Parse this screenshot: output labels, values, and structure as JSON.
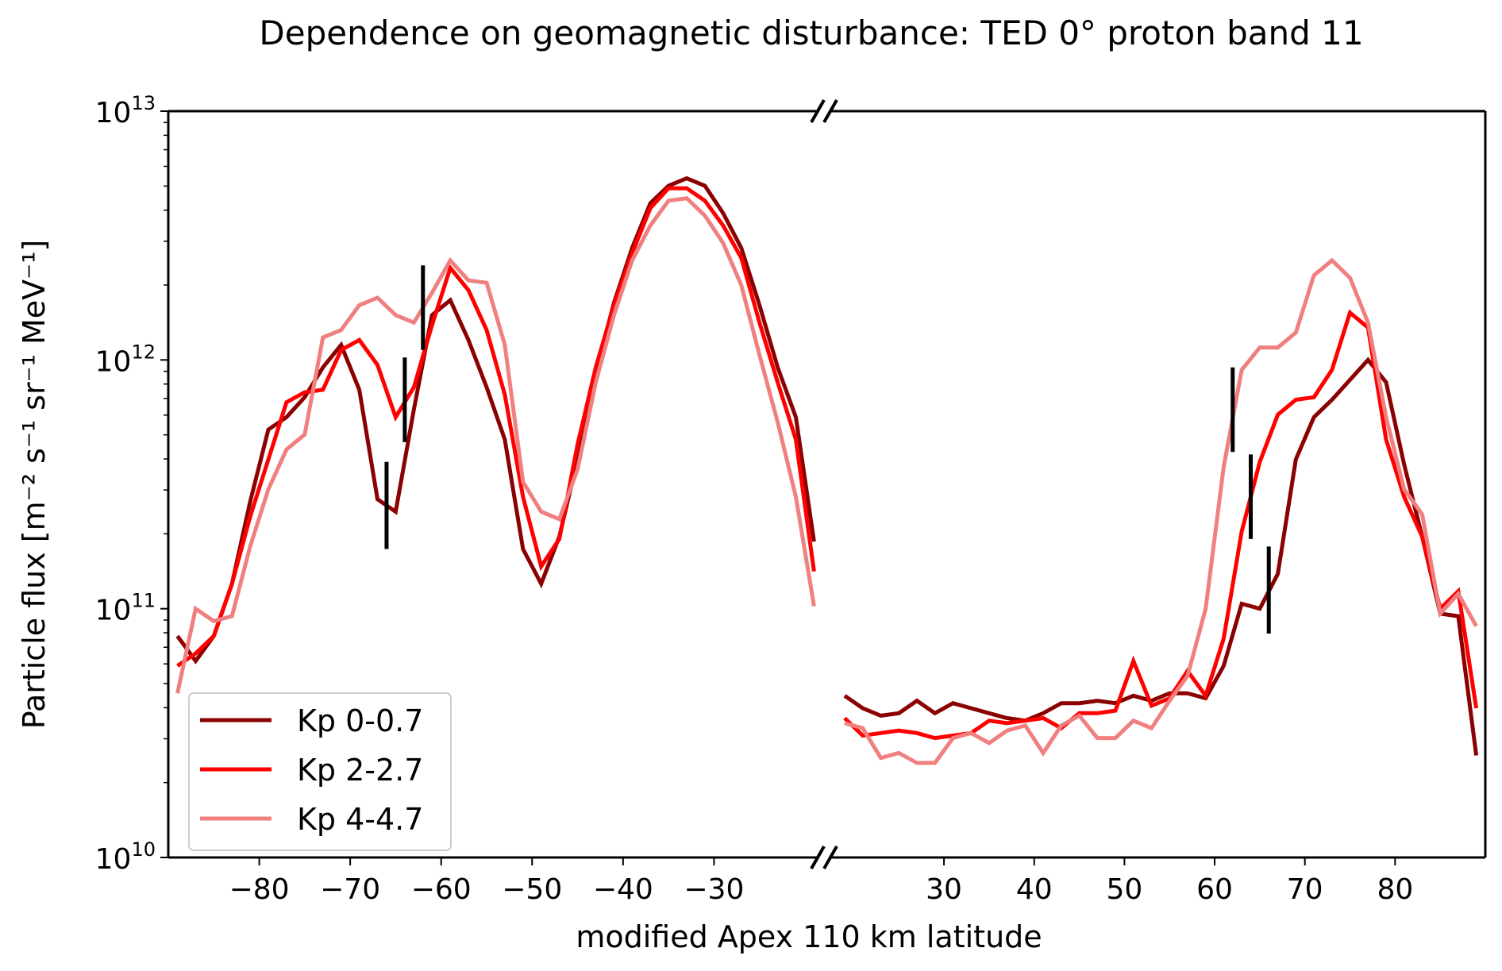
{
  "chart_data": {
    "type": "line",
    "title": "Dependence on geomagnetic disturbance: TED 0° proton band 11",
    "xlabel": "modified Apex 110 km latitude",
    "ylabel": "Particle flux [m⁻² s⁻¹ sr⁻¹ MeV⁻¹]",
    "yscale": "log",
    "value_units": "log10 of particle flux",
    "ylim": [
      10000000000.0,
      10000000000000.0
    ],
    "y_ticks": [
      {
        "exp": 10,
        "base": "10",
        "sup": "10"
      },
      {
        "exp": 11,
        "base": "10",
        "sup": "11"
      },
      {
        "exp": 12,
        "base": "10",
        "sup": "12"
      },
      {
        "exp": 13,
        "base": "10",
        "sup": "13"
      }
    ],
    "x_axis_break": true,
    "panels": [
      {
        "xlim": [
          -90,
          -18.6
        ],
        "x_ticks": [
          -80,
          -70,
          -60,
          -50,
          -40,
          -30
        ],
        "x_tick_labels": [
          "−80",
          "−70",
          "−60",
          "−50",
          "−40",
          "−30"
        ]
      },
      {
        "xlim": [
          17.5,
          90
        ],
        "x_ticks": [
          30,
          40,
          50,
          60,
          70,
          80
        ],
        "x_tick_labels": [
          "30",
          "40",
          "50",
          "60",
          "70",
          "80"
        ]
      }
    ],
    "x_left": [
      -89,
      -87,
      -85,
      -83,
      -81,
      -79,
      -77,
      -75,
      -73,
      -71,
      -69,
      -67,
      -65,
      -63,
      -61,
      -59,
      -57,
      -55,
      -53,
      -51,
      -49,
      -47,
      -45,
      -43,
      -41,
      -39,
      -37,
      -35,
      -33,
      -31,
      -29,
      -27,
      -25,
      -23,
      -21,
      -19
    ],
    "x_right": [
      19,
      21,
      23,
      25,
      27,
      29,
      31,
      33,
      35,
      37,
      39,
      41,
      43,
      45,
      47,
      49,
      51,
      53,
      55,
      57,
      59,
      61,
      63,
      65,
      67,
      69,
      71,
      73,
      75,
      77,
      79,
      81,
      83,
      85,
      87,
      89
    ],
    "series": [
      {
        "name": "Kp 0-0.7",
        "color": "#8b0000",
        "log_values_left": [
          10.89,
          10.79,
          10.89,
          11.1,
          11.43,
          11.72,
          11.77,
          11.85,
          11.97,
          12.06,
          11.88,
          11.44,
          11.39,
          11.8,
          12.18,
          12.24,
          12.08,
          11.89,
          11.68,
          11.24,
          11.1,
          11.29,
          11.6,
          11.95,
          12.23,
          12.45,
          12.63,
          12.7,
          12.73,
          12.7,
          12.59,
          12.45,
          12.22,
          11.97,
          11.77,
          11.27
        ],
        "log_values_right": [
          10.65,
          10.6,
          10.57,
          10.58,
          10.63,
          10.58,
          10.62,
          10.6,
          10.58,
          10.56,
          10.55,
          10.58,
          10.62,
          10.62,
          10.63,
          10.62,
          10.65,
          10.63,
          10.66,
          10.66,
          10.64,
          10.77,
          11.02,
          11.0,
          11.14,
          11.6,
          11.77,
          11.84,
          11.92,
          12.0,
          11.91,
          11.58,
          11.29,
          10.98,
          10.97,
          10.41
        ]
      },
      {
        "name": "Kp 2-2.7",
        "color": "#ff0000",
        "log_values_left": [
          10.77,
          10.82,
          10.89,
          11.1,
          11.37,
          11.6,
          11.83,
          11.87,
          11.88,
          12.04,
          12.08,
          11.98,
          11.77,
          11.89,
          12.14,
          12.37,
          12.28,
          12.12,
          11.86,
          11.45,
          11.17,
          11.28,
          11.66,
          11.97,
          12.22,
          12.43,
          12.61,
          12.69,
          12.69,
          12.64,
          12.54,
          12.41,
          12.15,
          11.91,
          11.68,
          11.15
        ],
        "log_values_right": [
          10.56,
          10.49,
          10.5,
          10.51,
          10.5,
          10.48,
          10.49,
          10.5,
          10.55,
          10.54,
          10.55,
          10.56,
          10.52,
          10.58,
          10.58,
          10.59,
          10.79,
          10.61,
          10.64,
          10.75,
          10.65,
          10.88,
          11.31,
          11.59,
          11.78,
          11.84,
          11.85,
          11.96,
          12.19,
          12.13,
          11.68,
          11.45,
          11.29,
          11.0,
          11.07,
          10.6
        ]
      },
      {
        "name": "Kp 4-4.7",
        "color": "#f08080",
        "log_values_left": [
          10.66,
          11.0,
          10.95,
          10.97,
          11.25,
          11.48,
          11.64,
          11.7,
          12.09,
          12.12,
          12.22,
          12.25,
          12.18,
          12.15,
          12.27,
          12.4,
          12.32,
          12.31,
          12.06,
          11.51,
          11.39,
          11.36,
          11.56,
          11.91,
          12.18,
          12.4,
          12.54,
          12.64,
          12.65,
          12.58,
          12.47,
          12.3,
          12.02,
          11.75,
          11.45,
          11.01
        ],
        "log_values_right": [
          10.54,
          10.52,
          10.4,
          10.42,
          10.38,
          10.38,
          10.48,
          10.5,
          10.46,
          10.51,
          10.53,
          10.42,
          10.53,
          10.57,
          10.48,
          10.48,
          10.55,
          10.52,
          10.63,
          10.73,
          11.0,
          11.57,
          11.96,
          12.05,
          12.05,
          12.11,
          12.34,
          12.4,
          12.33,
          12.15,
          11.77,
          11.48,
          11.38,
          10.98,
          11.06,
          10.93
        ]
      }
    ],
    "boundary_markers": [
      {
        "x": -66,
        "log_range": [
          11.24,
          11.59
        ]
      },
      {
        "x": -64,
        "log_range": [
          11.67,
          12.01
        ]
      },
      {
        "x": -62,
        "log_range": [
          12.04,
          12.38
        ]
      },
      {
        "x": 62,
        "log_range": [
          11.63,
          11.97
        ]
      },
      {
        "x": 64,
        "log_range": [
          11.28,
          11.62
        ]
      },
      {
        "x": 66,
        "log_range": [
          10.9,
          11.25
        ]
      }
    ],
    "legend": {
      "placement": "lower-left",
      "entries": [
        "Kp 0-0.7",
        "Kp 2-2.7",
        "Kp 4-4.7"
      ]
    },
    "grid": false
  }
}
